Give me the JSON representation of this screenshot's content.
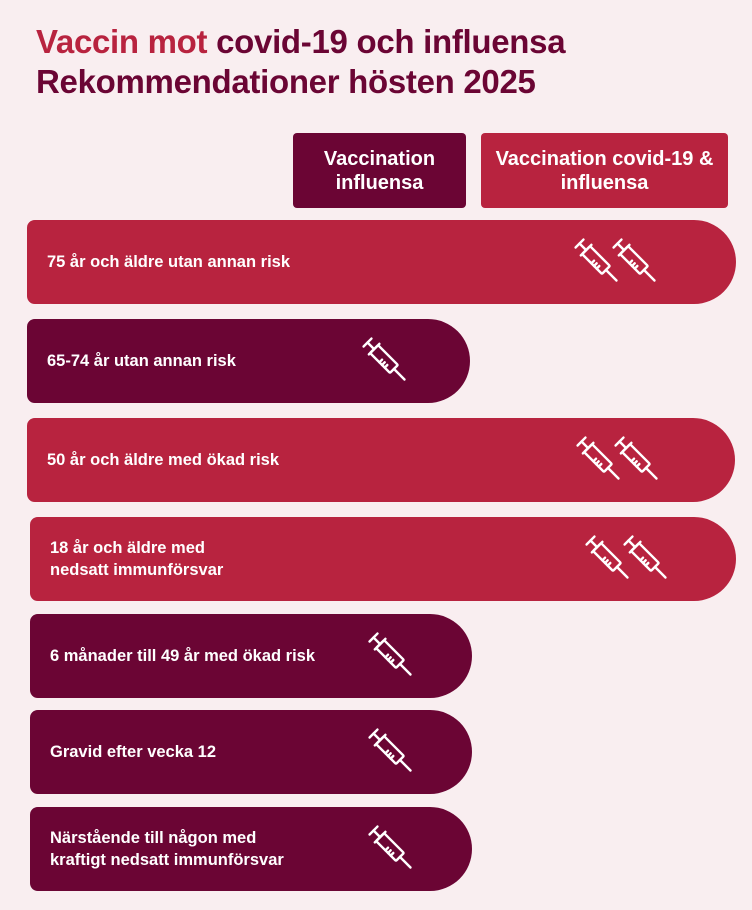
{
  "title": {
    "accent": "Vaccin mot",
    "rest": " covid-19 och influensa",
    "line2": "Rekommendationer hösten 2025"
  },
  "legend": [
    {
      "label": "Vaccination influensa",
      "color": "#6b0534"
    },
    {
      "label": "Vaccination covid-19 & influensa",
      "color": "#b8233f"
    }
  ],
  "rows": [
    {
      "label": "75 år och äldre utan annan risk",
      "type": "covid-19 & influensa",
      "icons": 2
    },
    {
      "label": "65-74 år utan annan risk",
      "type": "influensa",
      "icons": 1
    },
    {
      "label": "50 år och äldre med ökad risk",
      "type": "covid-19 & influensa",
      "icons": 2
    },
    {
      "label": "18 år och äldre med nedsatt immunförsvar",
      "type": "covid-19 & influensa",
      "icons": 2
    },
    {
      "label": "6 månader till 49 år med ökad risk",
      "type": "influensa",
      "icons": 1
    },
    {
      "label": "Gravid efter vecka 12",
      "type": "influensa",
      "icons": 1
    },
    {
      "label": "Närstående till någon med kraftigt nedsatt immunförsvar",
      "type": "influensa",
      "icons": 1
    }
  ],
  "icon": "syringe-icon"
}
